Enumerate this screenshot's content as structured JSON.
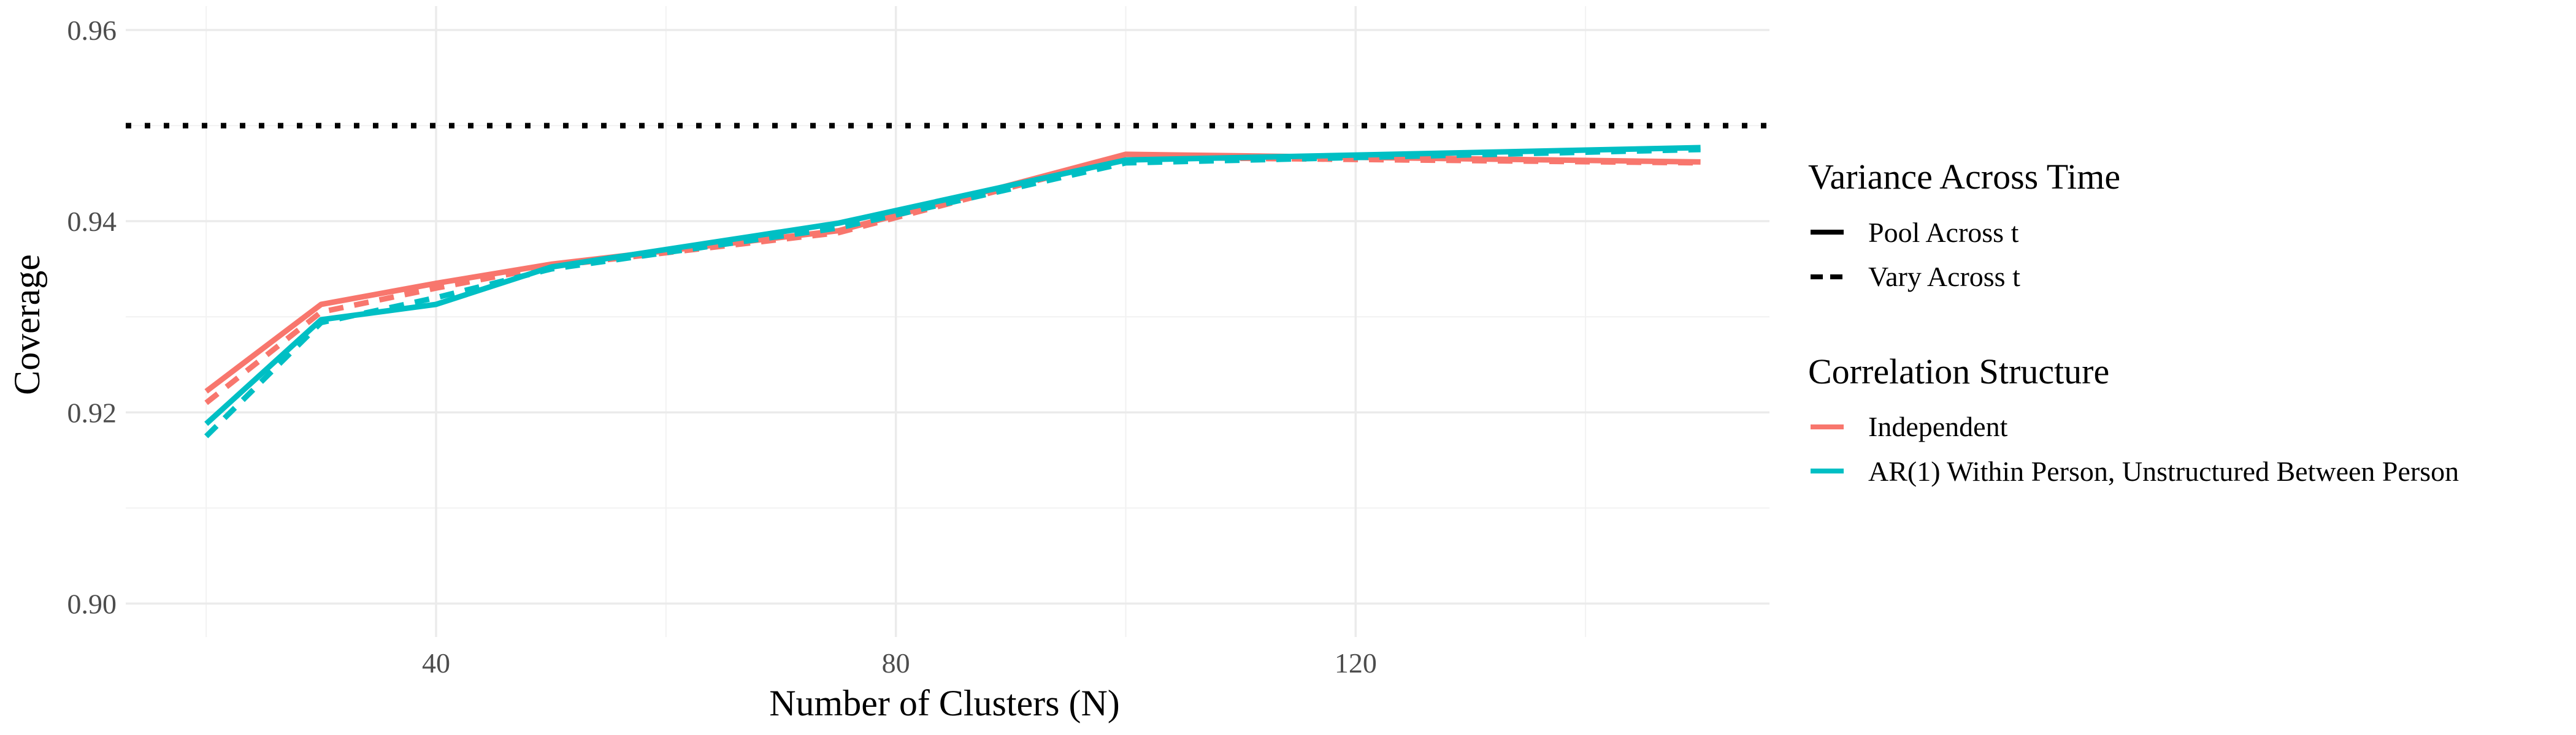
{
  "chart_data": {
    "type": "line",
    "xlabel": "Number of Clusters (N)",
    "ylabel": "Coverage",
    "xlim": [
      13,
      156
    ],
    "ylim": [
      0.8965,
      0.9625
    ],
    "x_ticks": [
      40,
      80,
      120
    ],
    "x_tick_labels": [
      "40",
      "80",
      "120"
    ],
    "x_minor_ticks": [
      20,
      60,
      100,
      140
    ],
    "y_ticks": [
      0.9,
      0.92,
      0.94,
      0.96
    ],
    "y_tick_labels": [
      "0.90",
      "0.92",
      "0.94",
      "0.96"
    ],
    "y_minor_ticks": [
      0.91,
      0.93,
      0.95
    ],
    "reference_line": {
      "y": 0.95,
      "style": "dotted",
      "color": "#000000"
    },
    "grid": true,
    "x": [
      20,
      30,
      40,
      50,
      75,
      100,
      150
    ],
    "series": [
      {
        "correlation": "Independent",
        "variance": "Pool Across t",
        "color": "#F8766D",
        "dash": "solid",
        "values": [
          0.9222,
          0.9313,
          0.9335,
          0.9355,
          0.939,
          0.947,
          0.9462
        ]
      },
      {
        "correlation": "Independent",
        "variance": "Vary Across t",
        "color": "#F8766D",
        "dash": "dashed",
        "values": [
          0.921,
          0.9305,
          0.933,
          0.9353,
          0.9388,
          0.9467,
          0.9461
        ]
      },
      {
        "correlation": "AR(1) Within Person, Unstructured Between Person",
        "variance": "Pool Across t",
        "color": "#00BFC4",
        "dash": "solid",
        "values": [
          0.9188,
          0.9297,
          0.9313,
          0.9352,
          0.9398,
          0.9464,
          0.9477
        ]
      },
      {
        "correlation": "AR(1) Within Person, Unstructured Between Person",
        "variance": "Vary Across t",
        "color": "#00BFC4",
        "dash": "dashed",
        "values": [
          0.9175,
          0.9294,
          0.932,
          0.935,
          0.9393,
          0.9461,
          0.9475
        ]
      }
    ],
    "legend": {
      "placement": "right",
      "linetype": {
        "title": "Variance Across Time",
        "items": [
          {
            "label": "Pool Across t",
            "dash": "solid"
          },
          {
            "label": "Vary Across t",
            "dash": "dashed"
          }
        ]
      },
      "color": {
        "title": "Correlation Structure",
        "items": [
          {
            "label": "Independent",
            "color": "#F8766D"
          },
          {
            "label": "AR(1) Within Person, Unstructured Between Person",
            "color": "#00BFC4"
          }
        ]
      }
    }
  }
}
